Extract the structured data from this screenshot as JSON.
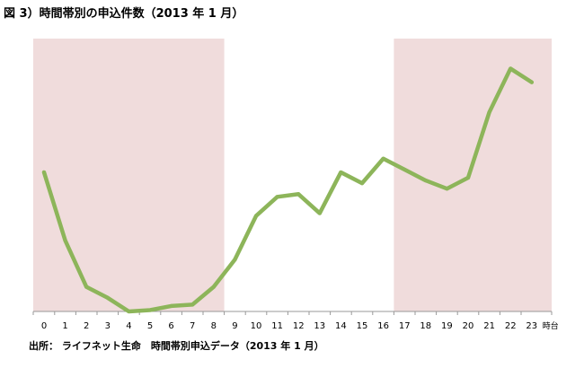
{
  "title": "図 3）時間帯別の申込件数（2013 年 1 月）",
  "source": "出所： ライフネット生命　時間帯別申込データ（2013 年 1 月）",
  "colors": {
    "line": "#8db55a",
    "band": "#f0dcdc",
    "axis": "#999999"
  },
  "chart_data": {
    "type": "line",
    "title": "図 3）時間帯別の申込件数（2013 年 1 月）",
    "xlabel": "",
    "ylabel": "",
    "x_unit": "時台",
    "categories": [
      "0",
      "1",
      "2",
      "3",
      "4",
      "5",
      "6",
      "7",
      "8",
      "9",
      "10",
      "11",
      "12",
      "13",
      "14",
      "15",
      "16",
      "17",
      "18",
      "19",
      "20",
      "21",
      "22",
      "23"
    ],
    "series": [
      {
        "values": [
          51,
          26,
          9,
          5,
          0,
          0.5,
          2,
          2.5,
          9,
          19,
          35,
          42,
          43,
          36,
          51,
          47,
          56,
          52,
          48,
          45,
          49,
          73,
          89,
          84
        ]
      }
    ],
    "ylim": [
      0,
      100
    ],
    "grid": false,
    "shaded_ranges": [
      [
        0,
        8
      ],
      [
        17,
        23
      ]
    ]
  }
}
